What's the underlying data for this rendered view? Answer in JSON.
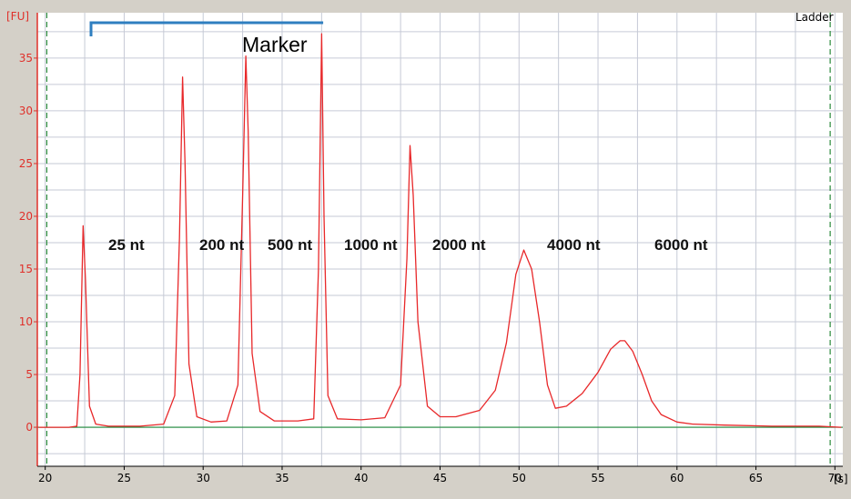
{
  "chart_data": {
    "type": "line",
    "title": "",
    "panel_label": "Ladder",
    "ylabel": "[FU]",
    "xlabel": "[s]",
    "xlim": [
      19.5,
      70.5
    ],
    "ylim": [
      -3.7,
      39.3
    ],
    "x_ticks": [
      20,
      25,
      30,
      35,
      40,
      45,
      50,
      55,
      60,
      65,
      70
    ],
    "y_ticks": [
      0,
      5,
      10,
      15,
      20,
      25,
      30,
      35
    ],
    "grid": true,
    "peak_labels": [
      {
        "text": "25 nt",
        "x": 22.4,
        "y": 19.1
      },
      {
        "text": "200 nt",
        "x": 28.7,
        "y": 33.2
      },
      {
        "text": "500 nt",
        "x": 32.7,
        "y": 35.2
      },
      {
        "text": "1000 nt",
        "x": 37.5,
        "y": 37.3
      },
      {
        "text": "2000 nt",
        "x": 43.1,
        "y": 26.7
      },
      {
        "text": "4000 nt",
        "x": 50.3,
        "y": 16.8
      },
      {
        "text": "6000 nt",
        "x": 56.7,
        "y": 8.2
      }
    ],
    "marker_annotation": {
      "text": "Marker",
      "x_start": 22.9,
      "x_end": 37.6
    },
    "vlines": [
      20.1,
      69.7
    ],
    "baseline": 0,
    "series": [
      {
        "color": "#e8282a",
        "x": [
          19.6,
          20.5,
          21.5,
          22.0,
          22.2,
          22.4,
          22.55,
          22.8,
          23.2,
          24.0,
          26.0,
          27.5,
          28.2,
          28.5,
          28.7,
          28.85,
          29.1,
          29.6,
          30.5,
          31.5,
          32.2,
          32.5,
          32.7,
          32.85,
          33.1,
          33.6,
          34.5,
          36.0,
          37.0,
          37.3,
          37.5,
          37.65,
          37.9,
          38.5,
          40.0,
          41.5,
          42.5,
          42.9,
          43.1,
          43.3,
          43.6,
          44.2,
          45.0,
          46.0,
          47.5,
          48.5,
          49.2,
          49.8,
          50.3,
          50.8,
          51.3,
          51.8,
          52.3,
          53.0,
          54.0,
          55.0,
          55.8,
          56.4,
          56.7,
          57.2,
          57.8,
          58.4,
          59.0,
          60.0,
          61.0,
          63.0,
          66.0,
          69.0,
          70.4
        ],
        "y": [
          0.0,
          0.0,
          0.0,
          0.1,
          5.0,
          19.1,
          14.0,
          2.0,
          0.3,
          0.1,
          0.1,
          0.3,
          3.0,
          18.0,
          33.2,
          25.0,
          6.0,
          1.0,
          0.5,
          0.6,
          4.0,
          22.0,
          35.2,
          28.0,
          7.0,
          1.5,
          0.6,
          0.6,
          0.8,
          15.0,
          37.3,
          20.0,
          3.0,
          0.8,
          0.7,
          0.9,
          4.0,
          16.0,
          26.7,
          22.0,
          10.0,
          2.0,
          1.0,
          1.0,
          1.6,
          3.5,
          8.0,
          14.5,
          16.8,
          15.0,
          10.0,
          4.0,
          1.8,
          2.0,
          3.2,
          5.2,
          7.4,
          8.2,
          8.2,
          7.2,
          5.0,
          2.5,
          1.2,
          0.5,
          0.3,
          0.2,
          0.1,
          0.1,
          0.0
        ]
      }
    ]
  },
  "colors": {
    "plot_bg": "#ffffff",
    "frame_bg": "#d4d0c8",
    "grid": "#c6cad6",
    "axis_y": "#e0302a",
    "tick_text_y": "#e0302a",
    "tick_text_x": "#000000",
    "baseline": "#1e8a3a",
    "vline": "#2a8a3a",
    "marker_bracket": "#2f7fc0"
  }
}
